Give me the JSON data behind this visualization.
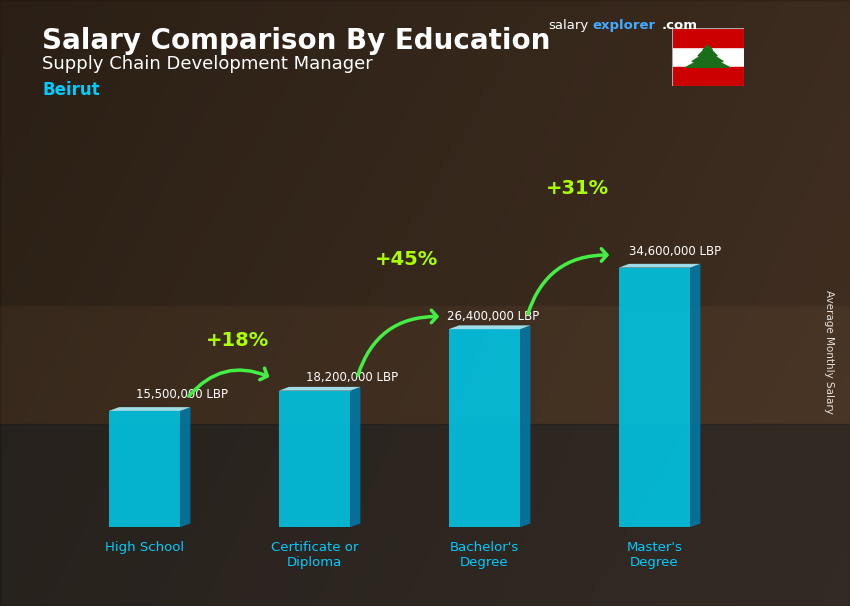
{
  "title_line1": "Salary Comparison By Education",
  "subtitle": "Supply Chain Development Manager",
  "city": "Beirut",
  "ylabel": "Average Monthly Salary",
  "categories": [
    "High School",
    "Certificate or\nDiploma",
    "Bachelor's\nDegree",
    "Master's\nDegree"
  ],
  "values": [
    15500000,
    18200000,
    26400000,
    34600000
  ],
  "labels": [
    "15,500,000 LBP",
    "18,200,000 LBP",
    "26,400,000 LBP",
    "34,600,000 LBP"
  ],
  "pct_changes": [
    "+18%",
    "+45%",
    "+31%"
  ],
  "bar_front_color": "#00c8e8",
  "bar_side_color": "#007aa8",
  "bar_top_color": "#aaf0ff",
  "bg_colors": [
    "#3a2e28",
    "#4a3c32",
    "#2e2820",
    "#3d3228"
  ],
  "title_color": "#ffffff",
  "subtitle_color": "#ffffff",
  "city_color": "#00ccff",
  "label_color": "#ffffff",
  "pct_color": "#aaff00",
  "arrow_color": "#44ee44",
  "salary_text_color": "#ffffff",
  "explorer_color": "#44aaff",
  "ylim": [
    0,
    42000000
  ],
  "salaryexplorer_salary": "salary",
  "salaryexplorer_explorer": "explorer",
  "salaryexplorer_com": ".com"
}
